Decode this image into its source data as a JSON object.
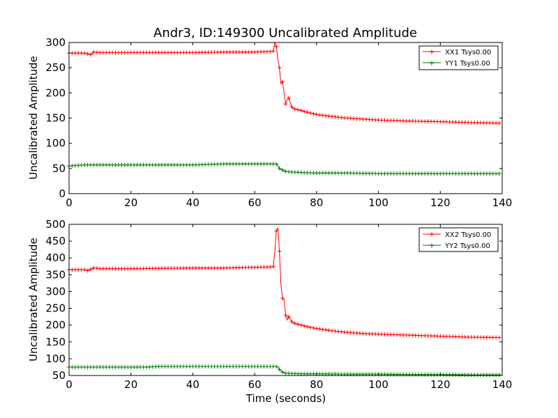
{
  "chart_data": [
    {
      "type": "line",
      "title": "Andr3, ID:149300 Uncalibrated Amplitude",
      "xlabel": "",
      "ylabel": "Uncalibrated Amplitude",
      "xlim": [
        0,
        140
      ],
      "ylim": [
        0,
        300
      ],
      "xticks": [
        0,
        20,
        40,
        60,
        80,
        100,
        120,
        140
      ],
      "yticks": [
        0,
        50,
        100,
        150,
        200,
        250,
        300
      ],
      "legend_position": "top-right",
      "series": [
        {
          "name": "XX1 Tsys0.00",
          "color": "#ff0000",
          "x": [
            0,
            5,
            7,
            8,
            10,
            20,
            30,
            40,
            50,
            60,
            65,
            66,
            66.5,
            67,
            67.5,
            68,
            68.5,
            69,
            69.5,
            70,
            70.5,
            71,
            72,
            73,
            75,
            78,
            80,
            85,
            90,
            95,
            100,
            110,
            120,
            130,
            139
          ],
          "values": [
            279,
            279,
            276,
            281,
            280,
            280,
            280,
            280,
            281,
            281,
            282,
            283,
            300,
            292,
            265,
            250,
            218,
            222,
            200,
            178,
            186,
            190,
            172,
            168,
            165,
            160,
            157,
            153,
            150,
            148,
            146,
            144,
            143,
            141,
            140
          ]
        },
        {
          "name": "YY1 Tsys0.00",
          "color": "#008000",
          "x": [
            0,
            5,
            10,
            20,
            30,
            40,
            45,
            50,
            60,
            66,
            67,
            67.5,
            68,
            69,
            70,
            72,
            75,
            80,
            90,
            100,
            110,
            120,
            130,
            139
          ],
          "values": [
            55,
            57,
            57,
            57,
            57,
            57,
            58,
            59,
            59,
            59,
            59,
            55,
            50,
            47,
            44,
            43,
            42,
            41,
            41,
            40,
            40,
            40,
            40,
            40
          ]
        }
      ]
    },
    {
      "type": "line",
      "title": "",
      "xlabel": "Time (seconds)",
      "ylabel": "Uncalibrated Amplitude",
      "xlim": [
        0,
        140
      ],
      "ylim": [
        50,
        500
      ],
      "xticks": [
        0,
        20,
        40,
        60,
        80,
        100,
        120,
        140
      ],
      "yticks": [
        50,
        100,
        150,
        200,
        250,
        300,
        350,
        400,
        450,
        500
      ],
      "legend_position": "top-right",
      "series": [
        {
          "name": "XX2 Tsys0.00",
          "color": "#ff0000",
          "x": [
            0,
            5,
            6,
            7,
            8,
            10,
            20,
            30,
            40,
            50,
            60,
            65,
            66,
            66.5,
            67,
            67.5,
            68,
            68.5,
            69,
            69.5,
            70,
            70.5,
            71,
            72,
            73,
            75,
            78,
            80,
            85,
            90,
            95,
            100,
            110,
            120,
            130,
            139
          ],
          "values": [
            365,
            365,
            362,
            366,
            370,
            368,
            368,
            369,
            370,
            370,
            372,
            373,
            374,
            420,
            480,
            490,
            420,
            320,
            280,
            275,
            230,
            215,
            225,
            210,
            205,
            200,
            193,
            190,
            183,
            178,
            175,
            173,
            170,
            167,
            164,
            163
          ]
        },
        {
          "name": "YY2 Tsys0.00",
          "color": "#008000",
          "x": [
            0,
            10,
            20,
            25,
            30,
            40,
            50,
            60,
            65,
            66,
            67,
            67.5,
            68,
            69,
            70,
            72,
            75,
            80,
            90,
            100,
            110,
            120,
            130,
            139
          ],
          "values": [
            75,
            75,
            75,
            75,
            77,
            77,
            77,
            77,
            77,
            77,
            77,
            75,
            68,
            60,
            57,
            56,
            55,
            55,
            54,
            54,
            53,
            53,
            52,
            52
          ]
        }
      ]
    }
  ]
}
